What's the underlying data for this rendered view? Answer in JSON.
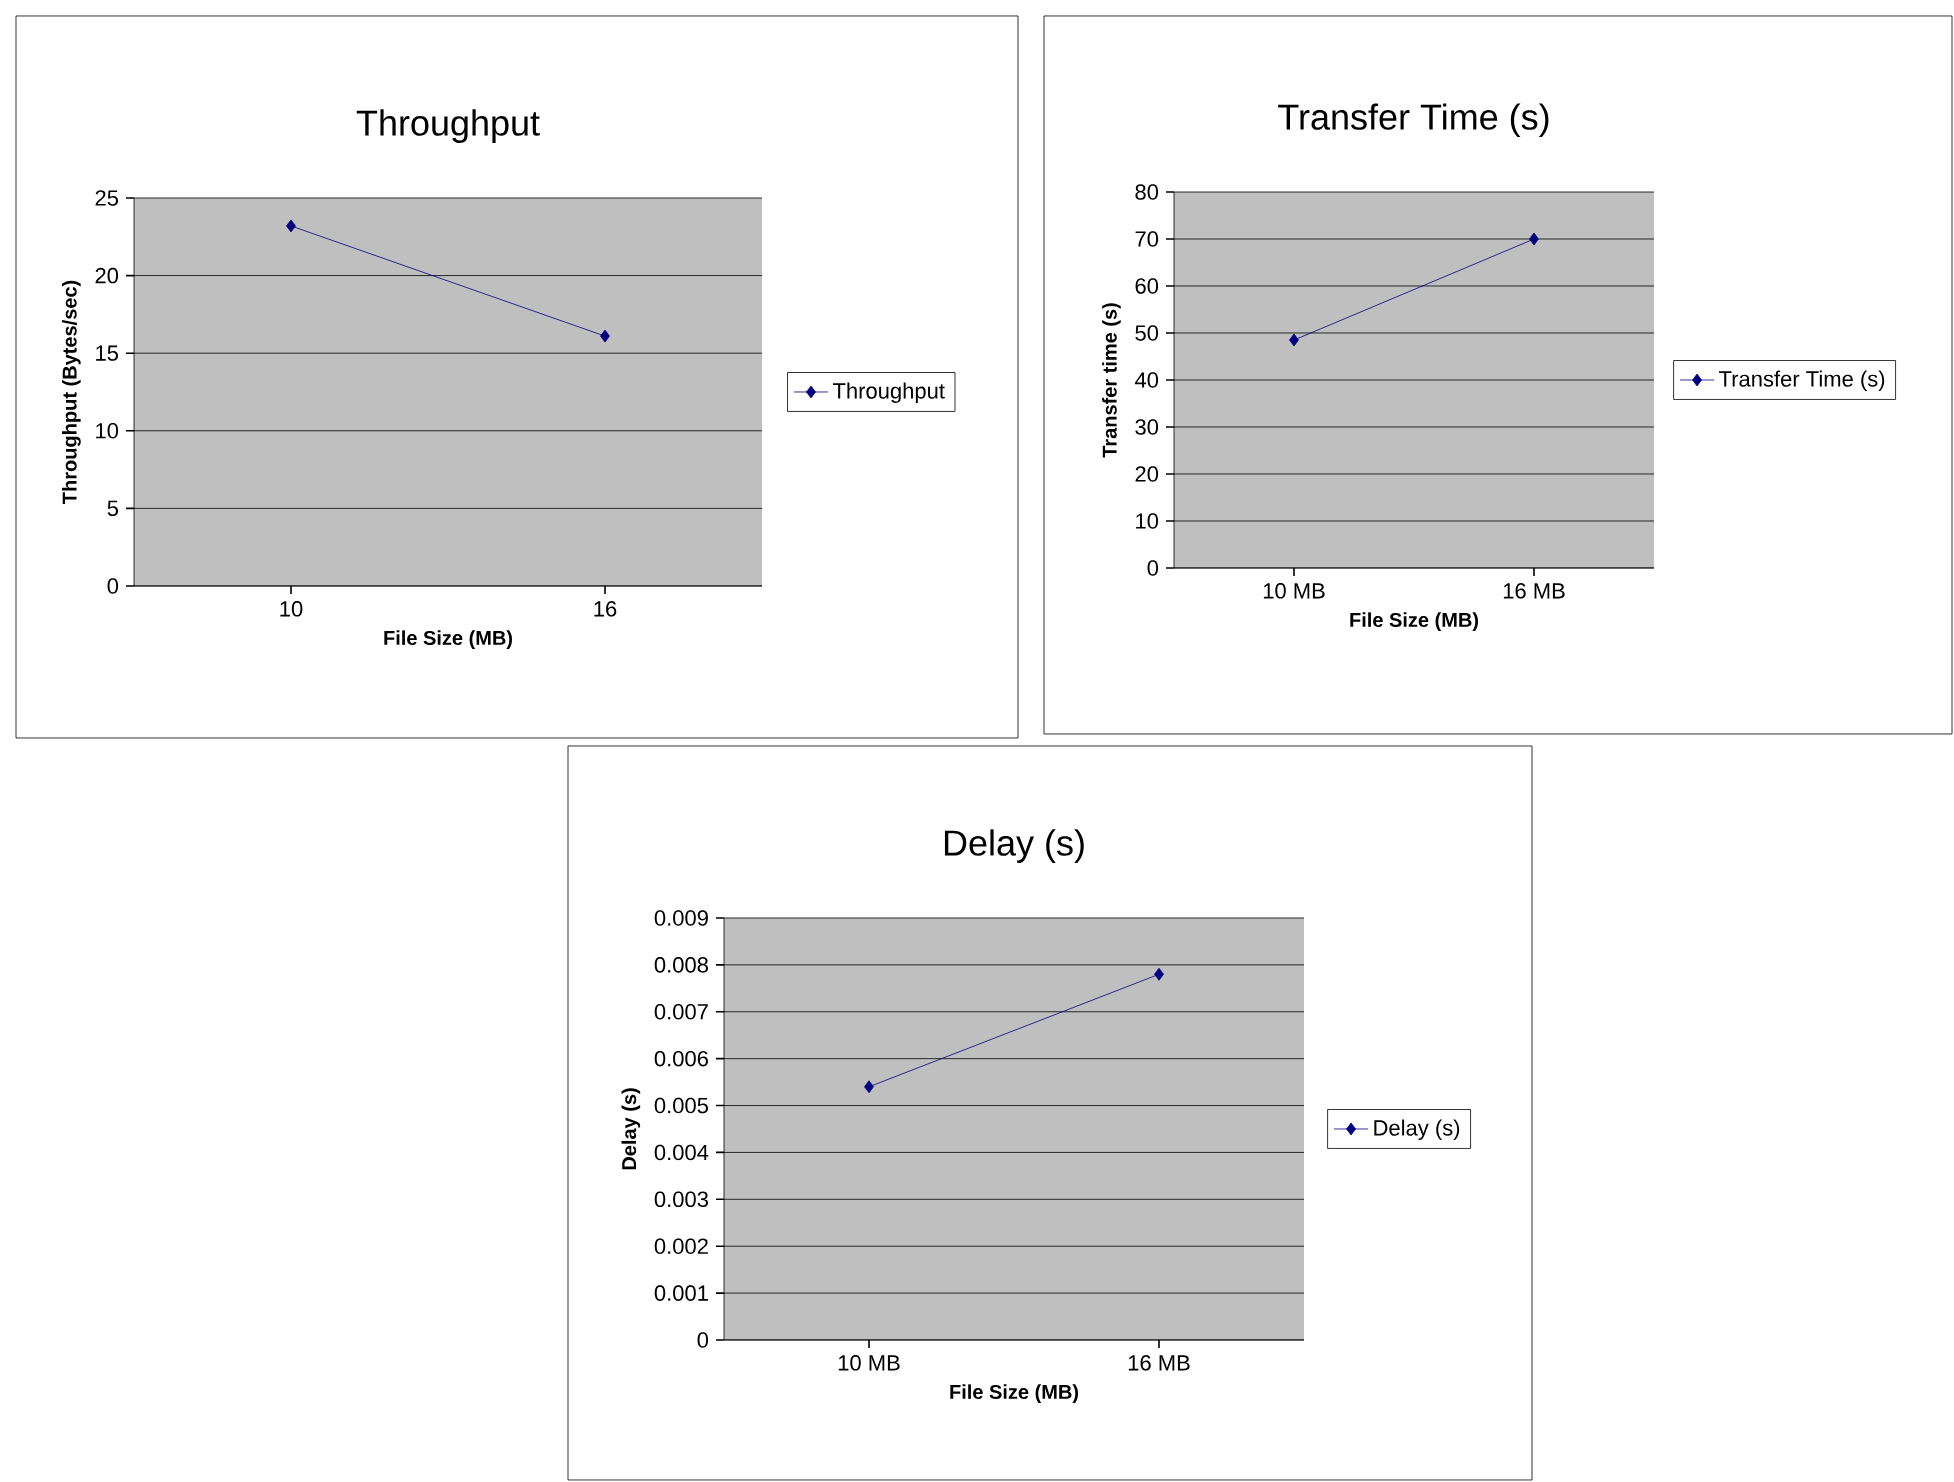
{
  "chart_data": [
    {
      "type": "line",
      "title": "Throughput",
      "xlabel": "File Size (MB)",
      "ylabel": "Throughput (Bytes/sec)",
      "categories": [
        "10",
        "16"
      ],
      "series": [
        {
          "name": "Throughput",
          "color": "#000080",
          "values": [
            23.2,
            16.1
          ]
        }
      ],
      "ylim": [
        0,
        25
      ],
      "yticks": [
        0,
        5,
        10,
        15,
        20,
        25
      ],
      "grid": "y",
      "legend": "right",
      "marker": "diamond"
    },
    {
      "type": "line",
      "title": "Transfer Time (s)",
      "xlabel": "File Size (MB)",
      "ylabel": "Transfer time (s)",
      "categories": [
        "10 MB",
        "16 MB"
      ],
      "series": [
        {
          "name": "Transfer Time (s)",
          "color": "#000080",
          "values": [
            48.5,
            70
          ]
        }
      ],
      "ylim": [
        0,
        80
      ],
      "yticks": [
        0,
        10,
        20,
        30,
        40,
        50,
        60,
        70,
        80
      ],
      "grid": "y",
      "legend": "right",
      "marker": "diamond"
    },
    {
      "type": "line",
      "title": "Delay (s)",
      "xlabel": "File Size (MB)",
      "ylabel": "Delay (s)",
      "categories": [
        "10 MB",
        "16 MB"
      ],
      "series": [
        {
          "name": "Delay (s)",
          "color": "#000080",
          "values": [
            0.0054,
            0.0078
          ]
        }
      ],
      "ylim": [
        0,
        0.009
      ],
      "yticks": [
        0,
        0.001,
        0.002,
        0.003,
        0.004,
        0.005,
        0.006,
        0.007,
        0.008,
        0.009
      ],
      "grid": "y",
      "legend": "right",
      "marker": "diamond"
    }
  ]
}
